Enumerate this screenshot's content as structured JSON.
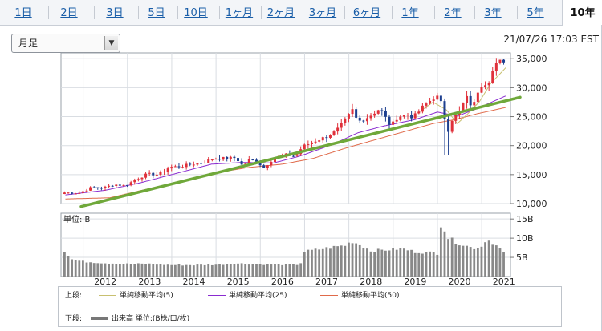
{
  "tabs": [
    {
      "label": "1日",
      "active": false
    },
    {
      "label": "2日",
      "active": false
    },
    {
      "label": "3日",
      "active": false
    },
    {
      "label": "5日",
      "active": false
    },
    {
      "label": "10日",
      "active": false
    },
    {
      "label": "1ヶ月",
      "active": false
    },
    {
      "label": "2ヶ月",
      "active": false
    },
    {
      "label": "3ヶ月",
      "active": false
    },
    {
      "label": "6ヶ月",
      "active": false
    },
    {
      "label": "1年",
      "active": false
    },
    {
      "label": "2年",
      "active": false
    },
    {
      "label": "3年",
      "active": false
    },
    {
      "label": "5年",
      "active": false
    },
    {
      "label": "10年",
      "active": true
    }
  ],
  "period_select": {
    "value": "月足"
  },
  "timestamp": "21/07/26 17:03 EST",
  "legend": {
    "upper_label": "上段:",
    "lower_label": "下段:",
    "items": [
      {
        "name": "単純移動平均(5)",
        "color": "#c8c070"
      },
      {
        "name": "単純移動平均(25)",
        "color": "#8a2bd0"
      },
      {
        "name": "単純移動平均(50)",
        "color": "#e06a4a"
      }
    ],
    "volume_item": {
      "name": "出来高 単位:(B株/口/枚)",
      "color": "#777777"
    }
  },
  "colors": {
    "up": "#e0303a",
    "down": "#1d3f8f",
    "trend": "#6fa83a",
    "volume": "#888888"
  },
  "chart_data": [
    {
      "type": "candlestick",
      "title": "",
      "x_tick_labels": [
        "2012",
        "2013",
        "2014",
        "2015",
        "2016",
        "2017",
        "2018",
        "2019",
        "2020",
        "2021"
      ],
      "y_tick_labels": [
        "35,000",
        "30,000",
        "25,000",
        "20,000",
        "15,000",
        "10,000"
      ],
      "ylim": [
        10000,
        36000
      ],
      "xlim": [
        2011.5,
        2021.65
      ],
      "grid": true,
      "close_anchors": [
        [
          2011.6,
          11900
        ],
        [
          2011.9,
          11800
        ],
        [
          2012.2,
          12800
        ],
        [
          2012.45,
          12700
        ],
        [
          2012.7,
          13300
        ],
        [
          2012.95,
          13100
        ],
        [
          2013.2,
          14200
        ],
        [
          2013.45,
          15100
        ],
        [
          2013.7,
          15000
        ],
        [
          2013.95,
          16300
        ],
        [
          2014.2,
          16400
        ],
        [
          2014.45,
          16800
        ],
        [
          2014.7,
          17100
        ],
        [
          2014.95,
          17800
        ],
        [
          2015.2,
          17800
        ],
        [
          2015.45,
          17900
        ],
        [
          2015.6,
          16500
        ],
        [
          2015.75,
          17500
        ],
        [
          2015.95,
          17400
        ],
        [
          2016.05,
          16000
        ],
        [
          2016.3,
          17800
        ],
        [
          2016.55,
          18400
        ],
        [
          2016.8,
          18200
        ],
        [
          2016.95,
          19800
        ],
        [
          2017.2,
          20700
        ],
        [
          2017.45,
          21400
        ],
        [
          2017.7,
          22400
        ],
        [
          2017.95,
          24700
        ],
        [
          2018.08,
          26100
        ],
        [
          2018.2,
          24100
        ],
        [
          2018.45,
          25000
        ],
        [
          2018.7,
          26400
        ],
        [
          2018.95,
          23300
        ],
        [
          2019.1,
          25000
        ],
        [
          2019.35,
          25400
        ],
        [
          2019.45,
          24800
        ],
        [
          2019.7,
          26900
        ],
        [
          2019.95,
          28500
        ],
        [
          2020.05,
          28200
        ],
        [
          2020.15,
          25400
        ],
        [
          2020.22,
          21900
        ],
        [
          2020.3,
          24300
        ],
        [
          2020.5,
          25800
        ],
        [
          2020.65,
          28400
        ],
        [
          2020.8,
          26500
        ],
        [
          2020.92,
          29600
        ],
        [
          2021.0,
          30600
        ],
        [
          2021.15,
          31000
        ],
        [
          2021.3,
          33800
        ],
        [
          2021.42,
          34500
        ],
        [
          2021.55,
          34900
        ]
      ],
      "sma_anchors": {
        "sma5": [
          [
            2019.55,
            25600
          ],
          [
            2019.9,
            27500
          ],
          [
            2020.2,
            26200
          ],
          [
            2020.45,
            23800
          ],
          [
            2020.7,
            25600
          ],
          [
            2020.95,
            27600
          ],
          [
            2021.2,
            30700
          ],
          [
            2021.55,
            33500
          ]
        ],
        "sma25": [
          [
            2011.6,
            11500
          ],
          [
            2012.5,
            12300
          ],
          [
            2013.3,
            13600
          ],
          [
            2014.0,
            15000
          ],
          [
            2014.9,
            16800
          ],
          [
            2015.6,
            17100
          ],
          [
            2016.3,
            17000
          ],
          [
            2016.9,
            18200
          ],
          [
            2017.6,
            20100
          ],
          [
            2018.2,
            22200
          ],
          [
            2018.8,
            23400
          ],
          [
            2019.5,
            24500
          ],
          [
            2020.0,
            25800
          ],
          [
            2020.45,
            25100
          ],
          [
            2020.9,
            26400
          ],
          [
            2021.55,
            28600
          ]
        ],
        "sma50": [
          [
            2011.6,
            10800
          ],
          [
            2012.6,
            11000
          ],
          [
            2013.5,
            12600
          ],
          [
            2014.3,
            14000
          ],
          [
            2015.0,
            15300
          ],
          [
            2015.7,
            16200
          ],
          [
            2016.5,
            16800
          ],
          [
            2017.2,
            17800
          ],
          [
            2017.9,
            19500
          ],
          [
            2018.5,
            20800
          ],
          [
            2019.2,
            22300
          ],
          [
            2019.9,
            23800
          ],
          [
            2020.4,
            24500
          ],
          [
            2020.9,
            25500
          ],
          [
            2021.55,
            26600
          ]
        ]
      },
      "trendline": [
        [
          2011.5,
          9900
        ],
        [
          2021.65,
          27800
        ]
      ]
    },
    {
      "type": "bar",
      "title": "",
      "unit_label": "単位: B",
      "y_tick_labels": [
        "15B",
        "10B",
        "5B"
      ],
      "ylim": [
        0,
        16.5
      ],
      "grid": true,
      "volume_anchors": [
        [
          2011.6,
          6.8
        ],
        [
          2011.7,
          4.6
        ],
        [
          2012.0,
          3.9
        ],
        [
          2012.5,
          3.5
        ],
        [
          2013.0,
          3.3
        ],
        [
          2013.5,
          3.3
        ],
        [
          2014.0,
          3.0
        ],
        [
          2014.5,
          3.0
        ],
        [
          2015.0,
          3.1
        ],
        [
          2015.5,
          3.4
        ],
        [
          2016.0,
          3.2
        ],
        [
          2016.5,
          3.1
        ],
        [
          2016.9,
          3.1
        ],
        [
          2017.0,
          6.5
        ],
        [
          2017.5,
          7.4
        ],
        [
          2017.95,
          8.2
        ],
        [
          2018.05,
          9.3
        ],
        [
          2018.3,
          8.0
        ],
        [
          2018.5,
          6.7
        ],
        [
          2018.9,
          7.0
        ],
        [
          2019.2,
          7.3
        ],
        [
          2019.5,
          6.4
        ],
        [
          2019.9,
          6.2
        ],
        [
          2020.0,
          6.0
        ],
        [
          2020.1,
          15.5
        ],
        [
          2020.2,
          10.3
        ],
        [
          2020.5,
          8.6
        ],
        [
          2020.8,
          7.4
        ],
        [
          2021.0,
          7.8
        ],
        [
          2021.1,
          9.8
        ],
        [
          2021.3,
          8.4
        ],
        [
          2021.55,
          5.6
        ]
      ]
    }
  ]
}
